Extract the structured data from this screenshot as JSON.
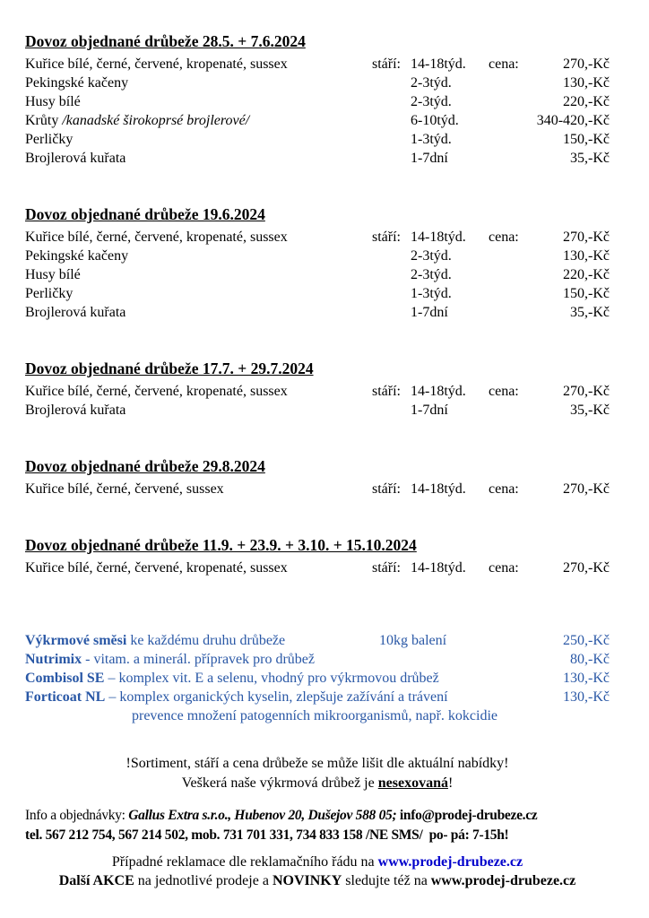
{
  "colors": {
    "accent_blue": "#2a58a6",
    "link_blue": "#0000cc"
  },
  "sections": [
    {
      "heading": "Dovoz objednané drůbeže 28.5. + 7.6.2024",
      "rows": [
        {
          "item": "Kuřice bílé, černé, červené, kropenaté, sussex",
          "age_label": "stáří:",
          "age": "14-18týd.",
          "price_label": "cena:",
          "price": "270,-Kč"
        },
        {
          "item": "Pekingské kačeny",
          "age": "2-3týd.",
          "price": "130,-Kč"
        },
        {
          "item": "Husy bílé",
          "age": "2-3týd.",
          "price": "220,-Kč"
        },
        {
          "item": "Krůty ",
          "item_italic": "/kanadské širokoprsé brojlerové/",
          "age": "6-10týd.",
          "price": "340-420,-Kč"
        },
        {
          "item": "Perličky",
          "age": "1-3týd.",
          "price": "150,-Kč"
        },
        {
          "item": "Brojlerová kuřata",
          "age": "1-7dní",
          "price": "35,-Kč"
        }
      ]
    },
    {
      "heading": "Dovoz objednané drůbeže 19.6.2024",
      "rows": [
        {
          "item": "Kuřice bílé, černé, červené, kropenaté, sussex",
          "age_label": "stáří:",
          "age": "14-18týd.",
          "price_label": "cena:",
          "price": "270,-Kč"
        },
        {
          "item": "Pekingské kačeny",
          "age": "2-3týd.",
          "price": "130,-Kč"
        },
        {
          "item": "Husy bílé",
          "age": "2-3týd.",
          "price": "220,-Kč"
        },
        {
          "item": "Perličky",
          "age": "1-3týd.",
          "price": "150,-Kč"
        },
        {
          "item": "Brojlerová kuřata",
          "age": "1-7dní",
          "price": "35,-Kč"
        }
      ]
    },
    {
      "heading": "Dovoz objednané drůbeže 17.7. + 29.7.2024",
      "rows": [
        {
          "item": "Kuřice bílé, černé, červené, kropenaté, sussex",
          "age_label": "stáří:",
          "age": "14-18týd.",
          "price_label": "cena:",
          "price": "270,-Kč"
        },
        {
          "item": "Brojlerová kuřata",
          "age": "1-7dní",
          "price": "35,-Kč"
        }
      ]
    },
    {
      "heading": "Dovoz objednané drůbeže 29.8.2024",
      "rows": [
        {
          "item": "Kuřice bílé, černé, červené, sussex",
          "age_label": "stáří:",
          "age": "14-18týd.",
          "price_label": "cena:",
          "price": "270,-Kč"
        }
      ]
    },
    {
      "heading": "Dovoz objednané drůbeže 11.9. + 23.9. + 3.10. + 15.10.2024",
      "rows": [
        {
          "item": "Kuřice bílé, černé, červené, kropenaté, sussex",
          "age_label": "stáří:",
          "age": "14-18týd.",
          "price_label": "cena:",
          "price": "270,-Kč"
        }
      ]
    }
  ],
  "products": {
    "rows": [
      {
        "name": "Výkrmové směsi",
        "desc": " ke každému druhu drůbeže",
        "mid": "10kg balení",
        "price": "250,-Kč"
      },
      {
        "name": "Nutrimix",
        "desc": " - vitam. a minerál. přípravek pro drůbež",
        "price": "80,-Kč"
      },
      {
        "name": "Combisol SE",
        "desc": " – komplex vit. E a selenu, vhodný pro výkrmovou drůbež",
        "price": "130,-Kč"
      },
      {
        "name": "Forticoat NL",
        "desc": " – komplex organických kyselin, zlepšuje zažívání a trávení",
        "price": "130,-Kč"
      }
    ],
    "note": "prevence množení patogenních mikroorganismů, např. kokcidie"
  },
  "notices": {
    "line1": "!Sortiment, stáří a cena drůbeže se může lišit dle aktuální nabídky!",
    "line2_prefix": "Veškerá naše výkrmová drůbež je ",
    "line2_bold": "nesexovaná",
    "line2_suffix": "!"
  },
  "contact": {
    "info_prefix": "Info a objednávky: ",
    "info_bolditalic": "Gallus Extra s.r.o., Hubenov 20, Dušejov 588 05;",
    "info_bold": " info@prodej-drubeze.cz",
    "tel": "tel. 567 212 754, 567 214 502, mob. 731 701 331, 734 833 158 /NE SMS/  po- pá: 7-15h!"
  },
  "footer": {
    "reklamace_prefix": "Případné reklamace dle reklamačního řádu na ",
    "reklamace_link": "www.prodej-drubeze.cz",
    "akce_bold1": "Další AKCE",
    "akce_mid1": " na jednotlivé prodeje a ",
    "akce_bold2": "NOVINKY",
    "akce_mid2": " sledujte též na ",
    "akce_bold3": "www.prodej-drubeze.cz"
  }
}
